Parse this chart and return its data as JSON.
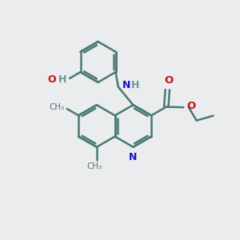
{
  "bg_color": "#eaecee",
  "bond_color": "#4a7a70",
  "N_color": "#1a0fcc",
  "O_color": "#cc1010",
  "HO_color": "#6a9a90",
  "text_color": "#4a7a70",
  "bond_width": 1.8,
  "figsize": [
    3.0,
    3.0
  ],
  "dpi": 100,
  "xlim": [
    0,
    10
  ],
  "ylim": [
    0,
    10
  ]
}
